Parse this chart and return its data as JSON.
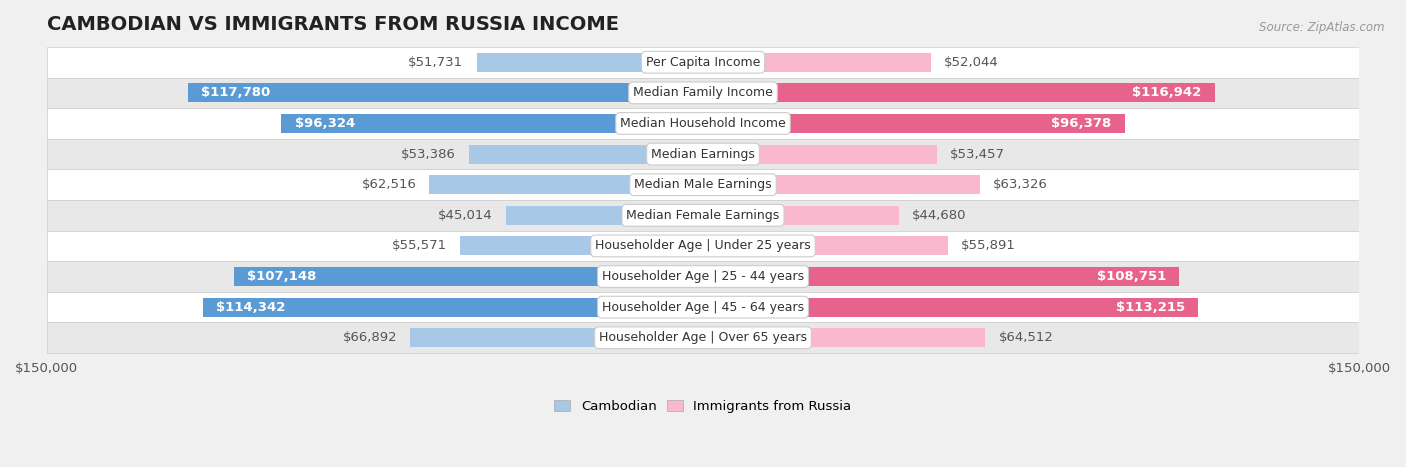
{
  "title": "CAMBODIAN VS IMMIGRANTS FROM RUSSIA INCOME",
  "source": "Source: ZipAtlas.com",
  "categories": [
    "Per Capita Income",
    "Median Family Income",
    "Median Household Income",
    "Median Earnings",
    "Median Male Earnings",
    "Median Female Earnings",
    "Householder Age | Under 25 years",
    "Householder Age | 25 - 44 years",
    "Householder Age | 45 - 64 years",
    "Householder Age | Over 65 years"
  ],
  "cambodian_values": [
    51731,
    117780,
    96324,
    53386,
    62516,
    45014,
    55571,
    107148,
    114342,
    66892
  ],
  "russia_values": [
    52044,
    116942,
    96378,
    53457,
    63326,
    44680,
    55891,
    108751,
    113215,
    64512
  ],
  "cambodian_labels": [
    "$51,731",
    "$117,780",
    "$96,324",
    "$53,386",
    "$62,516",
    "$45,014",
    "$55,571",
    "$107,148",
    "$114,342",
    "$66,892"
  ],
  "russia_labels": [
    "$52,044",
    "$116,942",
    "$96,378",
    "$53,457",
    "$63,326",
    "$44,680",
    "$55,891",
    "$108,751",
    "$113,215",
    "$64,512"
  ],
  "cambodian_color_light": "#a8c8e8",
  "cambodian_color_dark": "#5b9bd5",
  "russia_color_light": "#f9b8ce",
  "russia_color_dark": "#e8638c",
  "inside_label_color": "#ffffff",
  "outside_label_color": "#555555",
  "inside_threshold": 70000,
  "axis_max": 150000,
  "bar_height": 0.62,
  "background_color": "#f0f0f0",
  "row_bg_even": "#ffffff",
  "row_bg_odd": "#e8e8e8",
  "label_fontsize": 9.5,
  "title_fontsize": 14,
  "legend_fontsize": 9.5,
  "source_fontsize": 8.5,
  "cat_label_fontsize": 9,
  "legend_label_cambodian": "Cambodian",
  "legend_label_russia": "Immigrants from Russia"
}
